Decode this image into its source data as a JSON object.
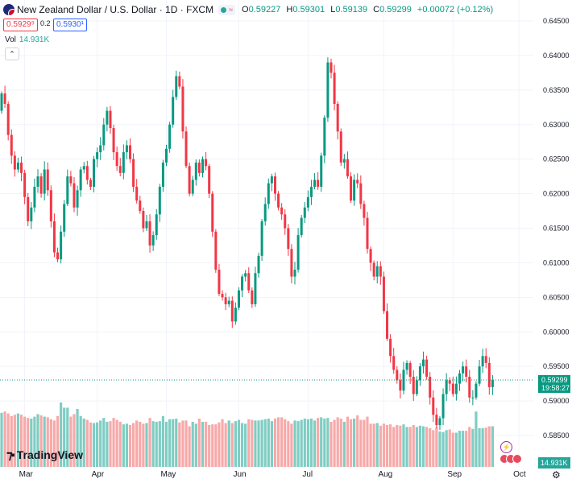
{
  "header": {
    "title": "New Zealand Dollar / U.S. Dollar · 1D · FXCM",
    "open_label": "O",
    "open": "0.59227",
    "high_label": "H",
    "high": "0.59301",
    "low_label": "L",
    "low": "0.59139",
    "close_label": "C",
    "close": "0.59299",
    "change": "+0.00072 (+0.12%)",
    "sell_price": "0.5929⁹",
    "spread": "0.2",
    "buy_price": "0.5930¹",
    "vol_label": "Vol",
    "vol_value": "14.931K",
    "collapse_icon": "chevron-up-icon"
  },
  "price_axis": {
    "current_price": "0.59299",
    "countdown": "19:58:27",
    "volume_badge": "14.931K"
  },
  "branding": {
    "logo_text": "TradingView"
  },
  "months": [
    {
      "label": "Mar",
      "bar": 7
    },
    {
      "label": "Apr",
      "bar": 29
    },
    {
      "label": "May",
      "bar": 50
    },
    {
      "label": "Jun",
      "bar": 72
    },
    {
      "label": "Jul",
      "bar": 93
    },
    {
      "label": "Aug",
      "bar": 116
    },
    {
      "label": "Sep",
      "bar": 137
    },
    {
      "label": "Oct",
      "bar": 157
    }
  ],
  "colors": {
    "up": "#089981",
    "down": "#f23645",
    "up_vol": "#7fcdc3",
    "down_vol": "#f7a9a9",
    "grid": "#f0f3fa"
  },
  "chart_data": {
    "type": "candlestick",
    "title": "New Zealand Dollar / U.S. Dollar · 1D · FXCM",
    "y_ticks": [
      0.585,
      0.59,
      0.595,
      0.6,
      0.605,
      0.61,
      0.615,
      0.62,
      0.625,
      0.63,
      0.635,
      0.64,
      0.645
    ],
    "ylim": [
      0.5815,
      0.6465
    ],
    "x_ticks": [
      "Mar",
      "Apr",
      "May",
      "Jun",
      "Jul",
      "Aug",
      "Sep",
      "Oct"
    ],
    "grid": true,
    "closes": [
      0.6345,
      0.633,
      0.6285,
      0.6255,
      0.6235,
      0.6245,
      0.623,
      0.6195,
      0.616,
      0.618,
      0.621,
      0.6225,
      0.62,
      0.6235,
      0.6205,
      0.616,
      0.6115,
      0.6105,
      0.6145,
      0.6185,
      0.6225,
      0.6215,
      0.618,
      0.6205,
      0.6235,
      0.624,
      0.622,
      0.621,
      0.625,
      0.626,
      0.627,
      0.63,
      0.632,
      0.6295,
      0.626,
      0.624,
      0.623,
      0.626,
      0.627,
      0.625,
      0.621,
      0.619,
      0.6175,
      0.615,
      0.616,
      0.6125,
      0.614,
      0.617,
      0.621,
      0.6245,
      0.6265,
      0.63,
      0.634,
      0.637,
      0.6355,
      0.629,
      0.624,
      0.62,
      0.622,
      0.6245,
      0.623,
      0.625,
      0.624,
      0.62,
      0.6145,
      0.609,
      0.6055,
      0.605,
      0.604,
      0.6045,
      0.6015,
      0.6035,
      0.606,
      0.608,
      0.6085,
      0.606,
      0.604,
      0.6085,
      0.611,
      0.616,
      0.6185,
      0.6215,
      0.6225,
      0.62,
      0.618,
      0.617,
      0.615,
      0.612,
      0.608,
      0.609,
      0.614,
      0.6165,
      0.618,
      0.6195,
      0.621,
      0.622,
      0.621,
      0.6255,
      0.631,
      0.639,
      0.6375,
      0.633,
      0.629,
      0.6245,
      0.625,
      0.6225,
      0.619,
      0.622,
      0.6215,
      0.6185,
      0.6165,
      0.612,
      0.61,
      0.608,
      0.6095,
      0.608,
      0.603,
      0.599,
      0.5965,
      0.5945,
      0.593,
      0.5915,
      0.5945,
      0.5955,
      0.5935,
      0.591,
      0.593,
      0.595,
      0.596,
      0.5935,
      0.5905,
      0.588,
      0.5865,
      0.5875,
      0.591,
      0.593,
      0.5925,
      0.591,
      0.5925,
      0.594,
      0.595,
      0.5935,
      0.5905,
      0.5905,
      0.5925,
      0.595,
      0.5965,
      0.5955,
      0.592,
      0.593
    ],
    "volumes": [
      78,
      80,
      77,
      73,
      75,
      77,
      75,
      72,
      70,
      69,
      72,
      76,
      74,
      72,
      71,
      68,
      66,
      73,
      94,
      86,
      86,
      72,
      76,
      84,
      73,
      69,
      67,
      63,
      62,
      63,
      66,
      70,
      64,
      65,
      70,
      67,
      64,
      60,
      61,
      59,
      62,
      66,
      64,
      61,
      62,
      70,
      65,
      64,
      65,
      73,
      64,
      68,
      68,
      69,
      63,
      66,
      66,
      57,
      64,
      61,
      69,
      64,
      64,
      59,
      60,
      60,
      63,
      68,
      62,
      66,
      62,
      65,
      67,
      62,
      61,
      68,
      67,
      66,
      66,
      67,
      68,
      69,
      65,
      69,
      71,
      71,
      68,
      65,
      61,
      66,
      65,
      67,
      69,
      68,
      69,
      66,
      70,
      71,
      69,
      70,
      64,
      67,
      71,
      69,
      64,
      72,
      68,
      69,
      74,
      67,
      67,
      72,
      61,
      61,
      62,
      58,
      61,
      59,
      60,
      56,
      59,
      58,
      60,
      56,
      56,
      59,
      56,
      58,
      57,
      56,
      54,
      51,
      55,
      49,
      48,
      51,
      52,
      47,
      47,
      50,
      50,
      50,
      56,
      53,
      80,
      54,
      54,
      55,
      57,
      57
    ]
  }
}
